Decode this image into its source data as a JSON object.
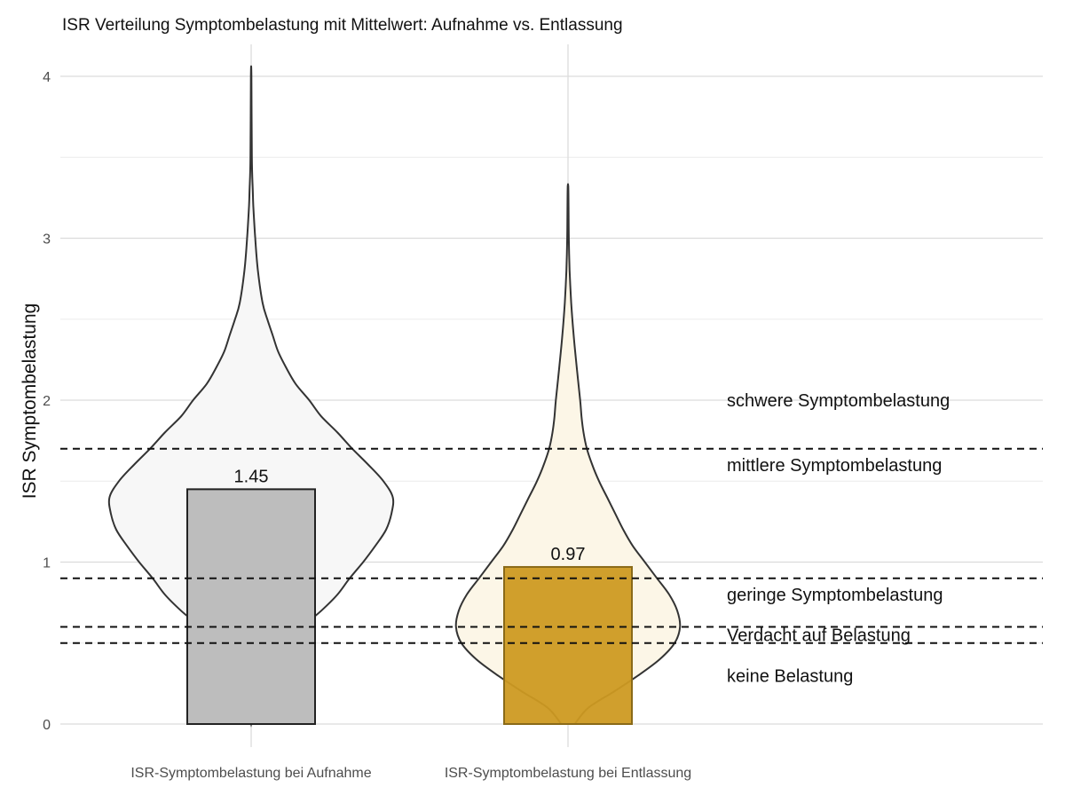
{
  "chart_data": {
    "type": "bar",
    "title": "ISR Verteilung Symptombelastung mit Mittelwert: Aufnahme vs. Entlassung",
    "xlabel": "",
    "ylabel": "ISR Symptombelastung",
    "ylim": [
      0,
      4.15
    ],
    "yticks": [
      "0",
      "1",
      "2",
      "3",
      "4"
    ],
    "grid": true,
    "categories": [
      "ISR-Symptombelastung bei Aufnahme",
      "ISR-Symptombelastung bei Entlassung"
    ],
    "values": [
      1.45,
      0.97
    ],
    "value_labels": [
      "1.45",
      "0.97"
    ],
    "bar_colors": [
      "#bdbdbd",
      "#cd9a22"
    ],
    "violin_fills": [
      "#f7f7f7",
      "#fcf6e7"
    ],
    "violins": [
      {
        "y": [
          0.0,
          0.1,
          0.2,
          0.3,
          0.4,
          0.5,
          0.6,
          0.7,
          0.8,
          0.9,
          1.0,
          1.1,
          1.2,
          1.3,
          1.4,
          1.5,
          1.6,
          1.7,
          1.8,
          1.9,
          2.0,
          2.1,
          2.2,
          2.3,
          2.4,
          2.5,
          2.6,
          2.8,
          3.0,
          3.2,
          3.3,
          3.5,
          4.0
        ],
        "width": [
          0.0,
          0.03,
          0.07,
          0.12,
          0.18,
          0.27,
          0.38,
          0.52,
          0.64,
          0.73,
          0.83,
          0.92,
          1.0,
          1.04,
          1.05,
          0.98,
          0.87,
          0.75,
          0.64,
          0.52,
          0.43,
          0.33,
          0.26,
          0.2,
          0.16,
          0.12,
          0.085,
          0.05,
          0.03,
          0.016,
          0.012,
          0.005,
          0.002
        ]
      },
      {
        "y": [
          0.0,
          0.1,
          0.2,
          0.3,
          0.4,
          0.5,
          0.6,
          0.7,
          0.8,
          0.9,
          1.0,
          1.1,
          1.2,
          1.3,
          1.4,
          1.5,
          1.6,
          1.7,
          1.8,
          1.9,
          2.0,
          2.2,
          2.4,
          2.6,
          2.8,
          3.0,
          3.2,
          3.32
        ],
        "width": [
          0.05,
          0.15,
          0.34,
          0.52,
          0.68,
          0.79,
          0.83,
          0.81,
          0.75,
          0.66,
          0.57,
          0.48,
          0.41,
          0.35,
          0.29,
          0.23,
          0.18,
          0.14,
          0.115,
          0.1,
          0.09,
          0.065,
          0.042,
          0.024,
          0.012,
          0.006,
          0.004,
          0.002
        ]
      }
    ],
    "thresholds": [
      {
        "value": 1.7,
        "label": ""
      },
      {
        "value": 0.9,
        "label": ""
      },
      {
        "value": 0.6,
        "label": ""
      },
      {
        "value": 0.5,
        "label": ""
      }
    ],
    "annotations": [
      {
        "y": 2.0,
        "text": "schwere Symptombelastung"
      },
      {
        "y": 1.6,
        "text": "mittlere Symptombelastung"
      },
      {
        "y": 0.8,
        "text": "geringe Symptombelastung"
      },
      {
        "y": 0.55,
        "text": "Verdacht auf Belastung"
      },
      {
        "y": 0.3,
        "text": "keine Belastung"
      }
    ]
  }
}
